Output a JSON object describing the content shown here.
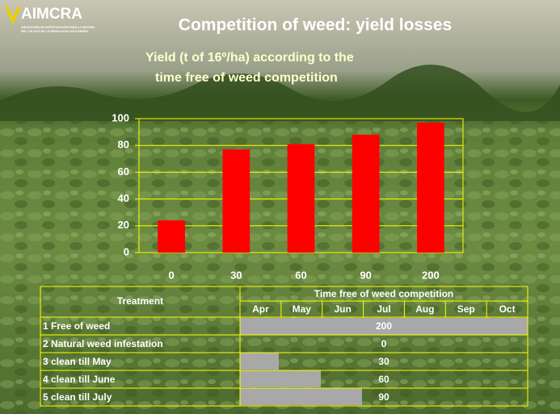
{
  "logo": {
    "name": "AIMCRA",
    "tagline": [
      "ASOCIACIÓN DE INVESTIGACIÓN PARA LA MEJORA",
      "DEL CULTIVO DE LA REMOLACHA AZUCARERA"
    ]
  },
  "chart_data": {
    "type": "bar",
    "title": "Competition of weed: yield losses",
    "subtitle": [
      "Yield (t of 16º/ha) according to the",
      "time free of weed competition"
    ],
    "categories": [
      "0",
      "30",
      "60",
      "90",
      "200"
    ],
    "values": [
      24,
      77,
      81,
      88,
      97
    ],
    "color": "#ff0000",
    "ylim": [
      0,
      100
    ],
    "yticks": [
      0,
      20,
      40,
      60,
      80,
      100
    ],
    "grid": true,
    "grid_color": "#ffff00"
  },
  "table": {
    "header": [
      "Treatment",
      "Time free of weed competition"
    ],
    "months": [
      "Apr",
      "May",
      "Jun",
      "Jul",
      "Aug",
      "Sep",
      "Oct"
    ],
    "rows": [
      [
        "1 Free of weed",
        "200"
      ],
      [
        "2 Natural weed infestation",
        "0"
      ],
      [
        "3 clean till May",
        "30"
      ],
      [
        "4 clean till June",
        "60"
      ],
      [
        "5 clean till July",
        "90"
      ]
    ]
  }
}
